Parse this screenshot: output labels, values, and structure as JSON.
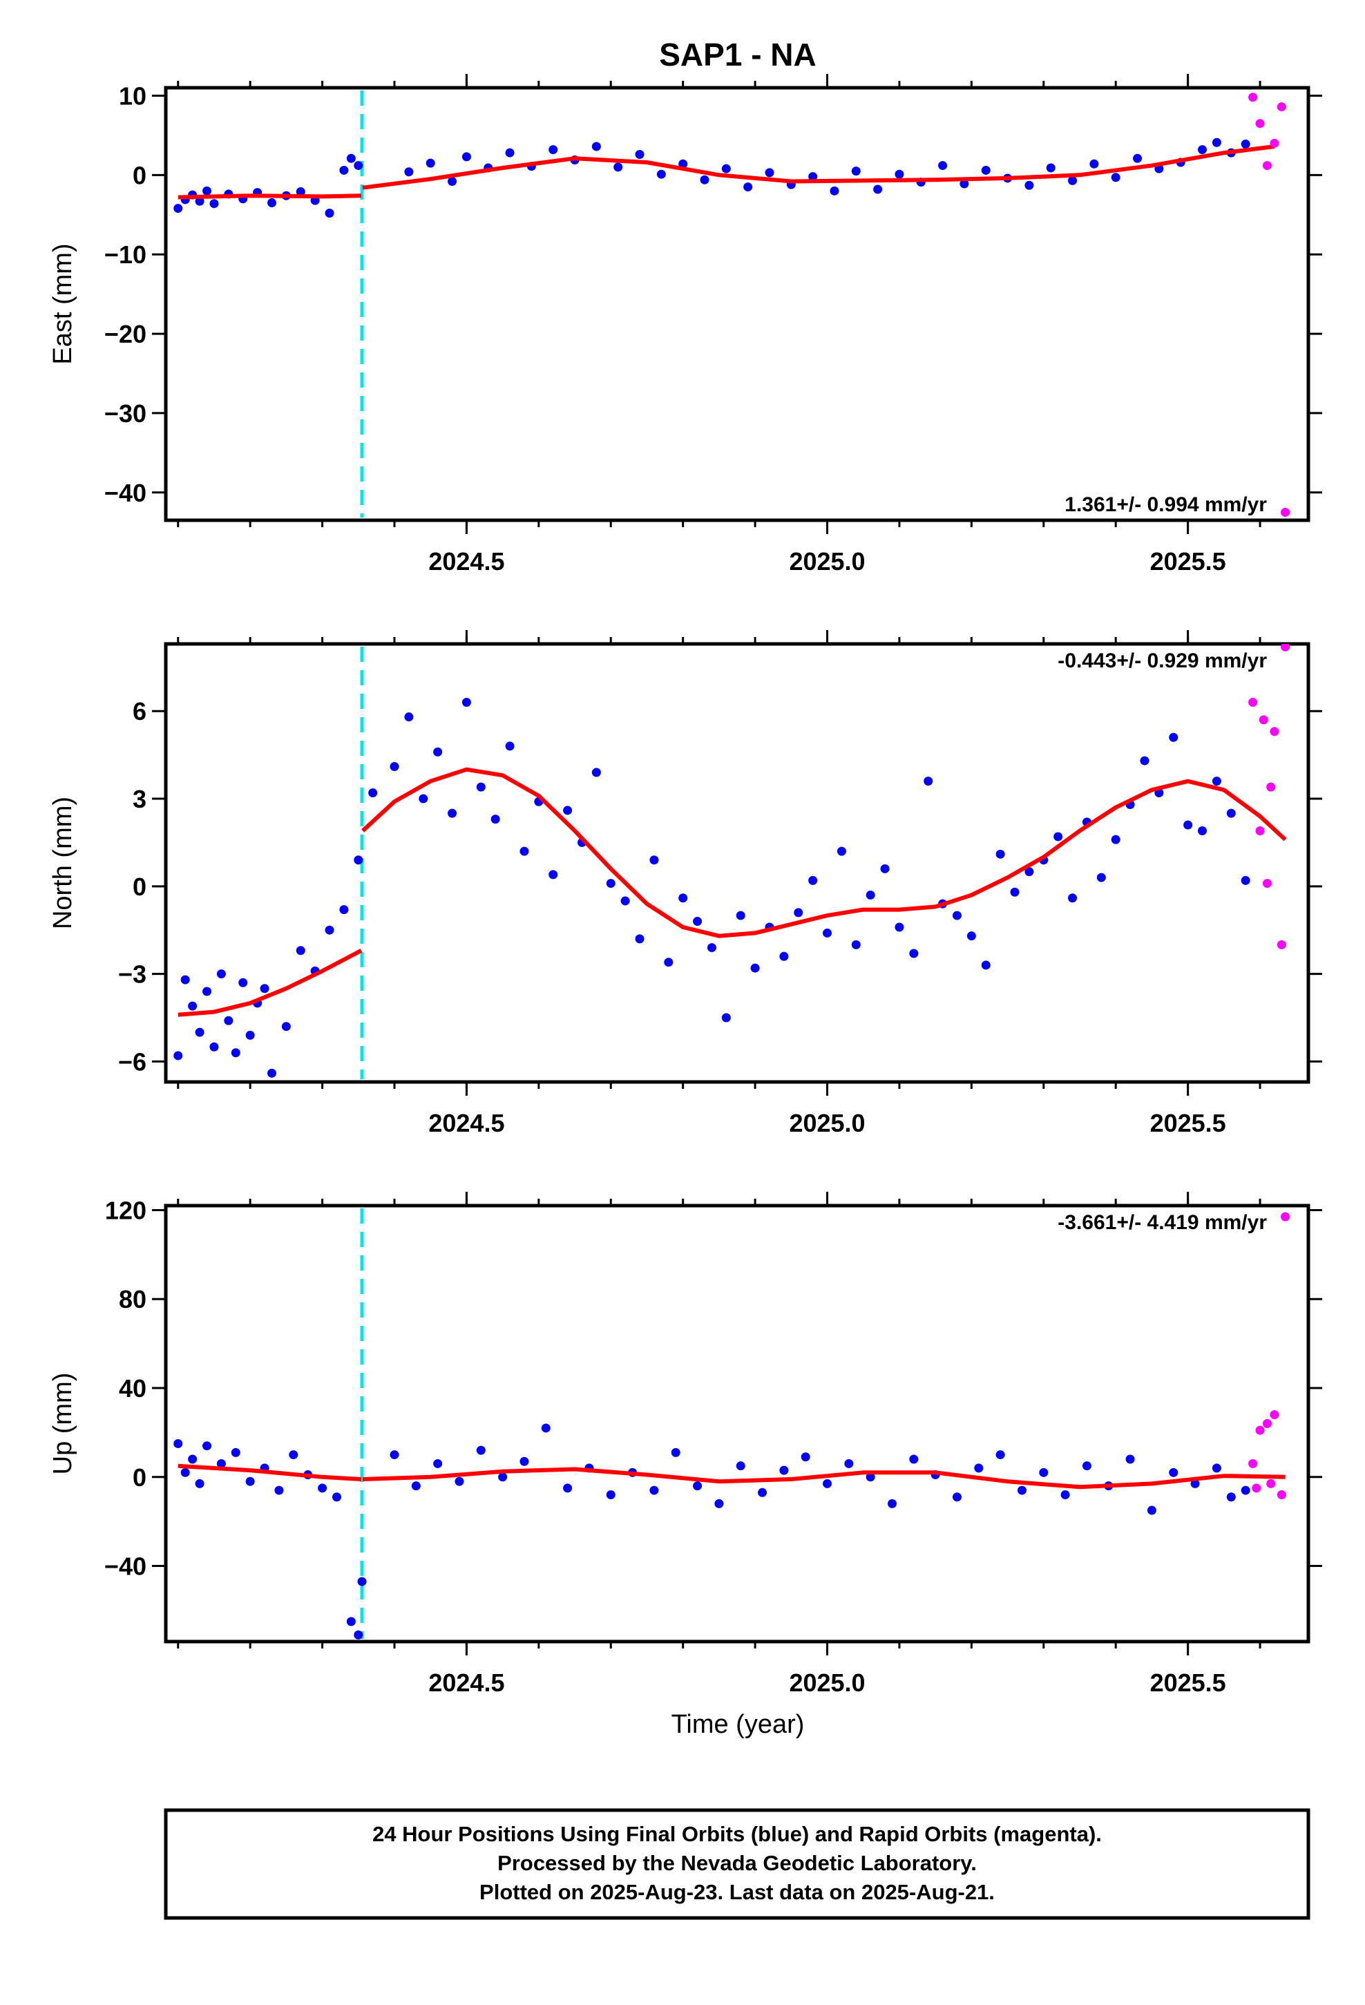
{
  "title": "SAP1 - NA",
  "xlabel": "Time (year)",
  "footer": {
    "line1": "24 Hour Positions Using Final Orbits (blue) and Rapid Orbits (magenta).",
    "line2": "Processed by the Nevada Geodetic Laboratory.",
    "line3": "Plotted on 2025-Aug-23. Last data on 2025-Aug-21."
  },
  "colors": {
    "final": "#0000ff",
    "rapid": "#ff00ff",
    "fit": "#ff0000",
    "event": "#00e5ee"
  },
  "chart_data": [
    {
      "type": "scatter",
      "ylabel": "East (mm)",
      "rate": "1.361+/- 0.994 mm/yr",
      "xlim": [
        2024.083,
        2025.667
      ],
      "ylim": [
        -43.5,
        11
      ],
      "yticks": [
        10,
        0,
        -10,
        -20,
        -30,
        -40
      ],
      "yticklabels": [
        "10",
        "0",
        "−10",
        "−20",
        "−30",
        "−40"
      ],
      "xticks": [
        2024.5,
        2025.0,
        2025.5
      ],
      "xticklabels": [
        "2024.5",
        "2025.0",
        "2025.5"
      ],
      "event_line": 2024.355,
      "fit": {
        "segments": [
          {
            "x": [
              2024.1,
              2024.2,
              2024.3,
              2024.354
            ],
            "y": [
              -2.8,
              -2.6,
              -2.7,
              -2.6
            ]
          },
          {
            "x": [
              2024.356,
              2024.45,
              2024.55,
              2024.65,
              2024.75,
              2024.85,
              2024.95,
              2025.05,
              2025.15,
              2025.25,
              2025.35,
              2025.45,
              2025.55,
              2025.62
            ],
            "y": [
              -1.6,
              -0.5,
              0.9,
              2.1,
              1.6,
              0.0,
              -0.8,
              -0.7,
              -0.6,
              -0.4,
              0.0,
              1.2,
              2.8,
              3.6
            ]
          }
        ]
      },
      "final": {
        "x": [
          2024.1,
          2024.11,
          2024.12,
          2024.13,
          2024.14,
          2024.15,
          2024.17,
          2024.19,
          2024.21,
          2024.23,
          2024.25,
          2024.27,
          2024.29,
          2024.31,
          2024.33,
          2024.34,
          2024.35,
          2024.42,
          2024.45,
          2024.48,
          2024.5,
          2024.53,
          2024.56,
          2024.59,
          2024.62,
          2024.65,
          2024.68,
          2024.71,
          2024.74,
          2024.77,
          2024.8,
          2024.83,
          2024.86,
          2024.89,
          2024.92,
          2024.95,
          2024.98,
          2025.01,
          2025.04,
          2025.07,
          2025.1,
          2025.13,
          2025.16,
          2025.19,
          2025.22,
          2025.25,
          2025.28,
          2025.31,
          2025.34,
          2025.37,
          2025.4,
          2025.43,
          2025.46,
          2025.49,
          2025.52,
          2025.54,
          2025.56,
          2025.58
        ],
        "y": [
          -4.2,
          -3.1,
          -2.5,
          -3.3,
          -2.0,
          -3.6,
          -2.4,
          -3.0,
          -2.2,
          -3.5,
          -2.6,
          -2.1,
          -3.2,
          -4.8,
          0.6,
          2.1,
          1.2,
          0.4,
          1.5,
          -0.8,
          2.3,
          0.9,
          2.8,
          1.1,
          3.2,
          1.9,
          3.6,
          1.0,
          2.6,
          0.1,
          1.4,
          -0.6,
          0.8,
          -1.5,
          0.3,
          -1.2,
          -0.2,
          -2.0,
          0.5,
          -1.8,
          0.1,
          -0.9,
          1.2,
          -1.1,
          0.6,
          -0.4,
          -1.3,
          0.9,
          -0.7,
          1.4,
          -0.3,
          2.1,
          0.8,
          1.6,
          3.2,
          4.1,
          2.8,
          3.9
        ]
      },
      "rapid": {
        "x": [
          2025.59,
          2025.6,
          2025.61,
          2025.62,
          2025.63,
          2025.635
        ],
        "y": [
          9.8,
          6.5,
          1.2,
          4.0,
          8.6,
          -42.5
        ]
      }
    },
    {
      "type": "scatter",
      "ylabel": "North (mm)",
      "rate": "-0.443+/- 0.929 mm/yr",
      "xlim": [
        2024.083,
        2025.667
      ],
      "ylim": [
        -6.7,
        8.3
      ],
      "yticks": [
        6,
        3,
        0,
        -3,
        -6
      ],
      "yticklabels": [
        "6",
        "3",
        "0",
        "−3",
        "−6"
      ],
      "xticks": [
        2024.5,
        2025.0,
        2025.5
      ],
      "xticklabels": [
        "2024.5",
        "2025.0",
        "2025.5"
      ],
      "event_line": 2024.355,
      "fit": {
        "segments": [
          {
            "x": [
              2024.1,
              2024.15,
              2024.2,
              2024.25,
              2024.3,
              2024.354
            ],
            "y": [
              -4.4,
              -4.3,
              -4.0,
              -3.5,
              -2.9,
              -2.2
            ]
          },
          {
            "x": [
              2024.356,
              2024.4,
              2024.45,
              2024.5,
              2024.55,
              2024.6,
              2024.65,
              2024.7,
              2024.75,
              2024.8,
              2024.85,
              2024.9,
              2024.95,
              2025.0,
              2025.05,
              2025.1,
              2025.15,
              2025.2,
              2025.25,
              2025.3,
              2025.35,
              2025.4,
              2025.45,
              2025.5,
              2025.55,
              2025.6,
              2025.635
            ],
            "y": [
              1.9,
              2.9,
              3.6,
              4.0,
              3.8,
              3.1,
              1.9,
              0.6,
              -0.6,
              -1.4,
              -1.7,
              -1.6,
              -1.3,
              -1.0,
              -0.8,
              -0.8,
              -0.7,
              -0.3,
              0.3,
              1.0,
              1.9,
              2.7,
              3.3,
              3.6,
              3.3,
              2.4,
              1.6
            ]
          }
        ]
      },
      "final": {
        "x": [
          2024.1,
          2024.11,
          2024.12,
          2024.13,
          2024.14,
          2024.15,
          2024.16,
          2024.17,
          2024.18,
          2024.19,
          2024.2,
          2024.21,
          2024.22,
          2024.23,
          2024.25,
          2024.27,
          2024.29,
          2024.31,
          2024.33,
          2024.35,
          2024.37,
          2024.4,
          2024.42,
          2024.44,
          2024.46,
          2024.48,
          2024.5,
          2024.52,
          2024.54,
          2024.56,
          2024.58,
          2024.6,
          2024.62,
          2024.64,
          2024.66,
          2024.68,
          2024.7,
          2024.72,
          2024.74,
          2024.76,
          2024.78,
          2024.8,
          2024.82,
          2024.84,
          2024.86,
          2024.88,
          2024.9,
          2024.92,
          2024.94,
          2024.96,
          2024.98,
          2025.0,
          2025.02,
          2025.04,
          2025.06,
          2025.08,
          2025.1,
          2025.12,
          2025.14,
          2025.16,
          2025.18,
          2025.2,
          2025.22,
          2025.24,
          2025.26,
          2025.28,
          2025.3,
          2025.32,
          2025.34,
          2025.36,
          2025.38,
          2025.4,
          2025.42,
          2025.44,
          2025.46,
          2025.48,
          2025.5,
          2025.52,
          2025.54,
          2025.56,
          2025.58
        ],
        "y": [
          -5.8,
          -3.2,
          -4.1,
          -5.0,
          -3.6,
          -5.5,
          -3.0,
          -4.6,
          -5.7,
          -3.3,
          -5.1,
          -4.0,
          -3.5,
          -6.4,
          -4.8,
          -2.2,
          -2.9,
          -1.5,
          -0.8,
          0.9,
          3.2,
          4.1,
          5.8,
          3.0,
          4.6,
          2.5,
          6.3,
          3.4,
          2.3,
          4.8,
          1.2,
          2.9,
          0.4,
          2.6,
          1.5,
          3.9,
          0.1,
          -0.5,
          -1.8,
          0.9,
          -2.6,
          -0.4,
          -1.2,
          -2.1,
          -4.5,
          -1.0,
          -2.8,
          -1.4,
          -2.4,
          -0.9,
          0.2,
          -1.6,
          1.2,
          -2.0,
          -0.3,
          0.6,
          -1.4,
          -2.3,
          3.6,
          -0.6,
          -1.0,
          -1.7,
          -2.7,
          1.1,
          -0.2,
          0.5,
          0.9,
          1.7,
          -0.4,
          2.2,
          0.3,
          1.6,
          2.8,
          4.3,
          3.2,
          5.1,
          2.1,
          1.9,
          3.6,
          2.5,
          0.2
        ]
      },
      "rapid": {
        "x": [
          2025.59,
          2025.6,
          2025.605,
          2025.61,
          2025.615,
          2025.62,
          2025.63,
          2025.635
        ],
        "y": [
          6.3,
          1.9,
          5.7,
          0.1,
          3.4,
          5.3,
          -2.0,
          8.2
        ]
      }
    },
    {
      "type": "scatter",
      "ylabel": "Up (mm)",
      "rate": "-3.661+/- 4.419 mm/yr",
      "xlim": [
        2024.083,
        2025.667
      ],
      "ylim": [
        -74,
        122
      ],
      "yticks": [
        120,
        80,
        40,
        0,
        -40
      ],
      "yticklabels": [
        "120",
        "80",
        "40",
        "0",
        "−40"
      ],
      "xticks": [
        2024.5,
        2025.0,
        2025.5
      ],
      "xticklabels": [
        "2024.5",
        "2025.0",
        "2025.5"
      ],
      "event_line": 2024.355,
      "fit": {
        "segments": [
          {
            "x": [
              2024.1,
              2024.2,
              2024.3,
              2024.354
            ],
            "y": [
              5.0,
              3.0,
              0.0,
              -1.0
            ]
          },
          {
            "x": [
              2024.356,
              2024.45,
              2024.55,
              2024.65,
              2024.75,
              2024.85,
              2024.95,
              2025.05,
              2025.15,
              2025.25,
              2025.35,
              2025.45,
              2025.55,
              2025.635
            ],
            "y": [
              -1.0,
              0.0,
              2.5,
              3.5,
              1.0,
              -2.0,
              -1.0,
              2.0,
              2.0,
              -2.0,
              -4.5,
              -3.0,
              0.5,
              0.0
            ]
          }
        ]
      },
      "final": {
        "x": [
          2024.1,
          2024.11,
          2024.12,
          2024.13,
          2024.14,
          2024.16,
          2024.18,
          2024.2,
          2024.22,
          2024.24,
          2024.26,
          2024.28,
          2024.3,
          2024.32,
          2024.34,
          2024.35,
          2024.355,
          2024.4,
          2024.43,
          2024.46,
          2024.49,
          2024.52,
          2024.55,
          2024.58,
          2024.61,
          2024.64,
          2024.67,
          2024.7,
          2024.73,
          2024.76,
          2024.79,
          2024.82,
          2024.85,
          2024.88,
          2024.91,
          2024.94,
          2024.97,
          2025.0,
          2025.03,
          2025.06,
          2025.09,
          2025.12,
          2025.15,
          2025.18,
          2025.21,
          2025.24,
          2025.27,
          2025.3,
          2025.33,
          2025.36,
          2025.39,
          2025.42,
          2025.45,
          2025.48,
          2025.51,
          2025.54,
          2025.56,
          2025.58
        ],
        "y": [
          15.0,
          2.0,
          8.0,
          -3.0,
          14.0,
          6.0,
          11.0,
          -2.0,
          4.0,
          -6.0,
          10.0,
          1.0,
          -5.0,
          -9.0,
          -65.0,
          -71.0,
          -47.0,
          10.0,
          -4.0,
          6.0,
          -2.0,
          12.0,
          0.0,
          7.0,
          22.0,
          -5.0,
          4.0,
          -8.0,
          2.0,
          -6.0,
          11.0,
          -4.0,
          -12.0,
          5.0,
          -7.0,
          3.0,
          9.0,
          -3.0,
          6.0,
          0.0,
          -12.0,
          8.0,
          1.0,
          -9.0,
          4.0,
          10.0,
          -6.0,
          2.0,
          -8.0,
          5.0,
          -4.0,
          8.0,
          -15.0,
          2.0,
          -3.0,
          4.0,
          -9.0,
          -6.0
        ]
      },
      "rapid": {
        "x": [
          2025.59,
          2025.595,
          2025.6,
          2025.61,
          2025.615,
          2025.62,
          2025.63,
          2025.635
        ],
        "y": [
          6.0,
          -5.0,
          21.0,
          24.0,
          -3.0,
          28.0,
          -8.0,
          117.0
        ]
      }
    }
  ]
}
